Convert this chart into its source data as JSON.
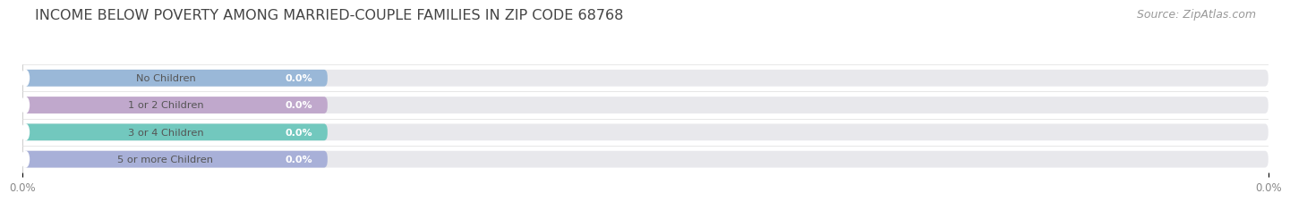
{
  "title": "INCOME BELOW POVERTY AMONG MARRIED-COUPLE FAMILIES IN ZIP CODE 68768",
  "source": "Source: ZipAtlas.com",
  "categories": [
    "No Children",
    "1 or 2 Children",
    "3 or 4 Children",
    "5 or more Children"
  ],
  "values": [
    0.0,
    0.0,
    0.0,
    0.0
  ],
  "bar_colors": [
    "#9ab8d8",
    "#c0a8cc",
    "#72c8be",
    "#a8b0d8"
  ],
  "circle_colors": [
    "#7aaac8",
    "#b090bc",
    "#50b8aa",
    "#9098c8"
  ],
  "bar_bg_color": "#e8e8ec",
  "background_color": "#ffffff",
  "title_fontsize": 11.5,
  "source_fontsize": 9,
  "bar_height": 0.62,
  "n_bars": 4,
  "xlim": [
    0,
    100
  ],
  "tick_label_left": "0.0%",
  "tick_label_right": "0.0%"
}
